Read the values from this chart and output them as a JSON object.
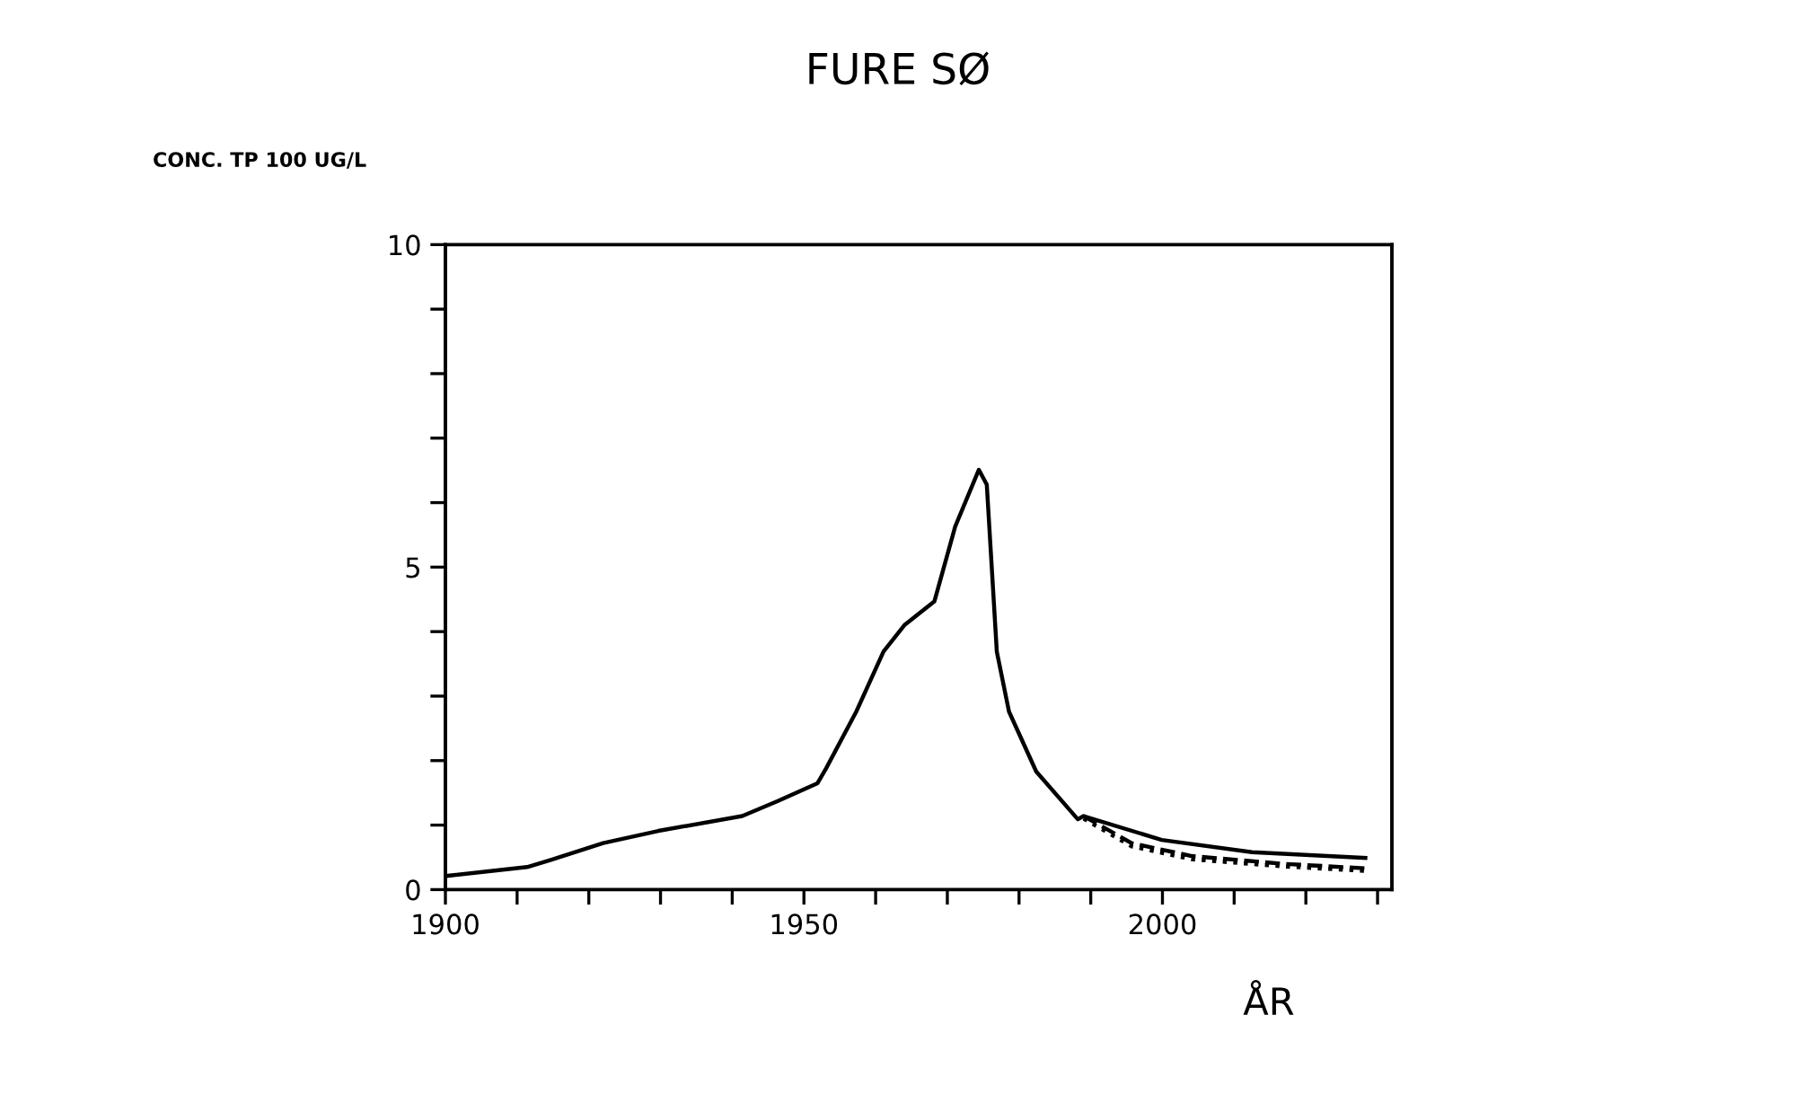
{
  "chart_data": {
    "type": "line",
    "title": "FURE SØ",
    "ylabel": "CONC. TP 100 UG/L",
    "xlabel": "ÅR",
    "xlim": [
      1900,
      2032
    ],
    "ylim": [
      0,
      10
    ],
    "xticks": [
      1900,
      {
        "value": 1910,
        "label": null
      },
      {
        "value": 1920,
        "label": null
      },
      {
        "value": 1930,
        "label": null
      },
      {
        "value": 1940,
        "label": null
      },
      1950,
      {
        "value": 1960,
        "label": null
      },
      {
        "value": 1970,
        "label": null
      },
      {
        "value": 1980,
        "label": null
      },
      {
        "value": 1990,
        "label": null
      },
      2000,
      {
        "value": 2010,
        "label": null
      },
      {
        "value": 2020,
        "label": null
      },
      {
        "value": 2030,
        "label": null
      }
    ],
    "yticks": [
      0,
      {
        "value": 1,
        "label": null
      },
      {
        "value": 2,
        "label": null
      },
      {
        "value": 3,
        "label": null
      },
      {
        "value": 4,
        "label": null
      },
      5,
      {
        "value": 6,
        "label": null
      },
      {
        "value": 7,
        "label": null
      },
      {
        "value": 8,
        "label": null
      },
      {
        "value": 9,
        "label": null
      },
      10
    ],
    "grid": false,
    "legend": false,
    "marker": "none",
    "series": [
      {
        "color": "#000000",
        "line_style": "solid",
        "x": [
          1900,
          1911.4,
          1914.7,
          1922,
          1929.7,
          1941.4,
          1946.3,
          1951.9,
          1953.1,
          1957.3,
          1961.1,
          1964,
          1968.2,
          1971.1,
          1974.4,
          1975.5,
          1976.9,
          1978.6,
          1982.4,
          1988.2,
          1989,
          1999.9,
          2012.5,
          2028.3
        ],
        "values": [
          0.21,
          0.35,
          0.46,
          0.72,
          0.91,
          1.14,
          1.37,
          1.65,
          1.88,
          2.76,
          3.69,
          4.1,
          4.47,
          5.63,
          6.51,
          6.28,
          3.69,
          2.76,
          1.83,
          1.09,
          1.14,
          0.77,
          0.58,
          0.49
        ]
      },
      {
        "color": "#000000",
        "line_style": "dashed",
        "x": [
          1989,
          1995.7,
          2004.1,
          2016.8,
          2028.3
        ],
        "values": [
          1.14,
          0.72,
          0.52,
          0.4,
          0.33
        ]
      },
      {
        "color": "#000000",
        "line_style": "dotted",
        "x": [
          1989,
          1995.7,
          2004.1,
          2016.8,
          2028.3
        ],
        "values": [
          1.1,
          0.67,
          0.47,
          0.36,
          0.29
        ]
      }
    ]
  }
}
